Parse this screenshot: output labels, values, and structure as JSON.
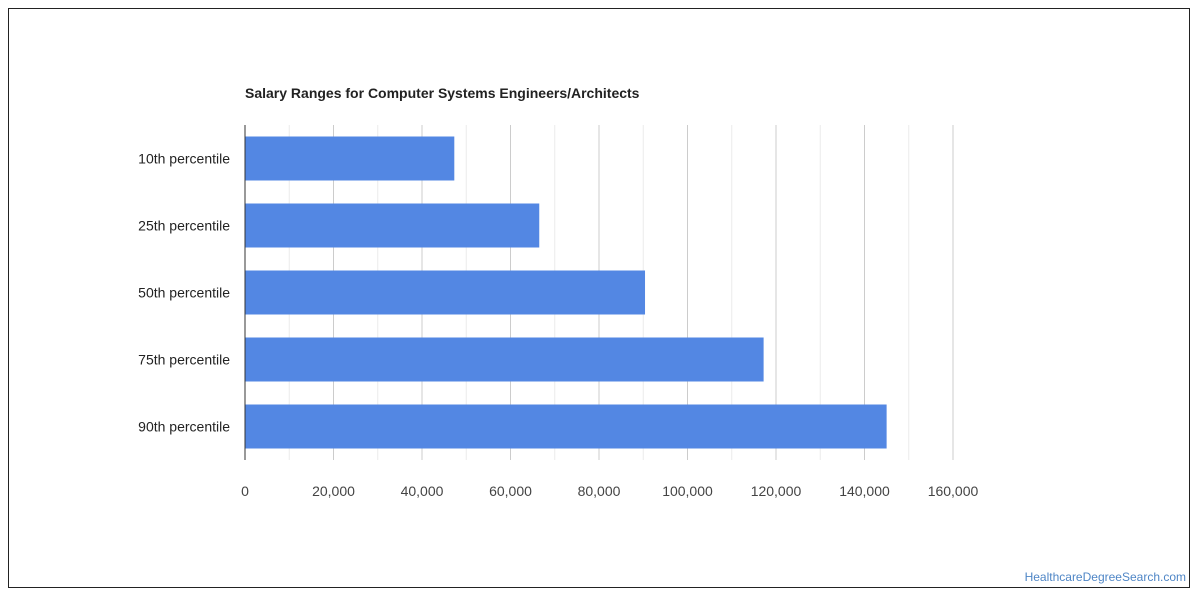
{
  "chart_data": {
    "type": "bar",
    "orientation": "horizontal",
    "title": "Salary Ranges for Computer Systems Engineers/Architects",
    "categories": [
      "10th percentile",
      "25th percentile",
      "50th percentile",
      "75th percentile",
      "90th percentile"
    ],
    "values": [
      47300,
      66500,
      90400,
      117200,
      145000
    ],
    "xlim": [
      0,
      160000
    ],
    "xticks": [
      0,
      20000,
      40000,
      60000,
      80000,
      100000,
      120000,
      140000,
      160000
    ],
    "xtick_labels": [
      "0",
      "20,000",
      "40,000",
      "60,000",
      "80,000",
      "100,000",
      "120,000",
      "140,000",
      "160,000"
    ],
    "xlabel": "",
    "ylabel": "",
    "grid": true,
    "legend": "none",
    "bar_color": "#5387e3",
    "grid_color": "#cccccc"
  },
  "watermark": "HealthcareDegreeSearch.com"
}
